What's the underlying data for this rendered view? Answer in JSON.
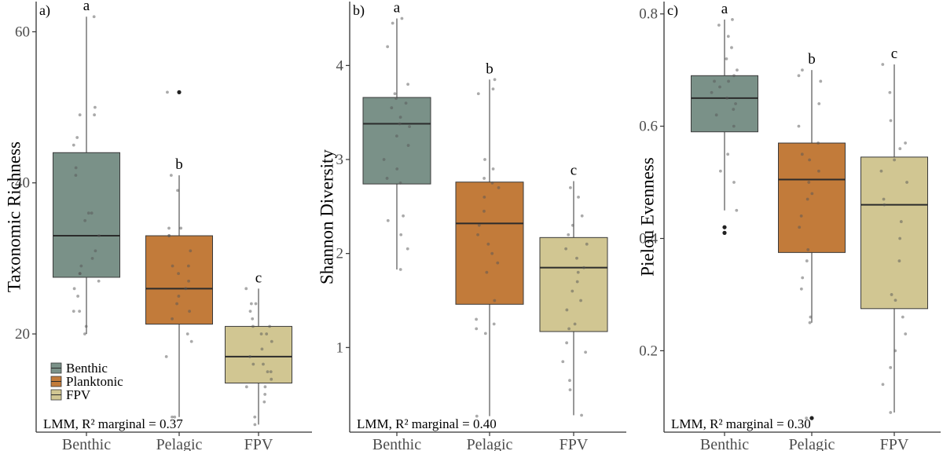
{
  "chart_data": [
    {
      "type": "boxplot",
      "panel_label": "a)",
      "ylabel": "Taxonomic Richness",
      "categories": [
        "Benthic",
        "Pelagic",
        "FPV"
      ],
      "yticks": [
        20,
        40,
        60
      ],
      "ylim": [
        7,
        64
      ],
      "series": [
        {
          "name": "Benthic",
          "color": "#7a9188",
          "min": 20,
          "q1": 27.5,
          "median": 33,
          "q3": 44,
          "max": 62,
          "letter": "a",
          "outliers": [],
          "points": [
            20,
            21,
            23,
            23,
            25,
            26,
            27,
            28,
            28,
            29,
            30,
            31,
            33,
            35,
            36,
            36,
            41,
            42,
            45,
            46,
            49,
            49,
            50,
            62
          ]
        },
        {
          "name": "Planktonic",
          "color": "#c27b3a",
          "min": 9,
          "q1": 21.3,
          "median": 26,
          "q3": 33,
          "max": 41,
          "letter": "b",
          "outliers": [
            52
          ],
          "points": [
            9,
            9,
            17,
            19,
            20,
            22,
            23,
            24,
            25,
            26,
            27,
            28,
            29,
            29,
            31,
            33,
            33,
            34,
            34,
            39,
            41,
            52
          ]
        },
        {
          "name": "FPV",
          "color": "#d1c692",
          "min": 8,
          "q1": 13.5,
          "median": 17,
          "q3": 21,
          "max": 26,
          "letter": "c",
          "outliers": [],
          "points": [
            8,
            9,
            11,
            12,
            13,
            13,
            14,
            15,
            15,
            16,
            16,
            17,
            18,
            19,
            20,
            20,
            21,
            21,
            22,
            23,
            24,
            24,
            26
          ]
        }
      ],
      "annotation": "LMM, R² marginal = 0.37",
      "legend": {
        "entries": [
          "Benthic",
          "Planktonic",
          "FPV"
        ],
        "position": "bottom-left"
      }
    },
    {
      "type": "boxplot",
      "panel_label": "b)",
      "ylabel": "Shannon Diversity",
      "categories": [
        "Benthic",
        "Pelagic",
        "FPV"
      ],
      "yticks": [
        1,
        2,
        3,
        4
      ],
      "ylim": [
        0.1,
        4.68
      ],
      "series": [
        {
          "name": "Benthic",
          "color": "#7a9188",
          "min": 1.83,
          "q1": 2.74,
          "median": 3.38,
          "q3": 3.66,
          "max": 4.5,
          "letter": "a",
          "outliers": [],
          "points": [
            1.83,
            2.05,
            2.2,
            2.35,
            2.4,
            2.75,
            2.8,
            2.9,
            3.0,
            3.15,
            3.25,
            3.35,
            3.38,
            3.45,
            3.55,
            3.6,
            3.65,
            3.7,
            3.8,
            4.2,
            4.45,
            4.5
          ]
        },
        {
          "name": "Planktonic",
          "color": "#c27b3a",
          "min": 0.27,
          "q1": 1.46,
          "median": 2.32,
          "q3": 2.76,
          "max": 3.85,
          "letter": "b",
          "outliers": [],
          "points": [
            0.27,
            1.15,
            1.2,
            1.25,
            1.3,
            1.5,
            1.8,
            1.9,
            2.0,
            2.1,
            2.2,
            2.3,
            2.45,
            2.6,
            2.7,
            2.75,
            2.8,
            2.9,
            3.0,
            3.7,
            3.75,
            3.85
          ]
        },
        {
          "name": "FPV",
          "color": "#d1c692",
          "min": 0.28,
          "q1": 1.17,
          "median": 1.85,
          "q3": 2.17,
          "max": 2.77,
          "letter": "c",
          "outliers": [],
          "points": [
            0.28,
            0.55,
            0.65,
            0.85,
            0.95,
            1.05,
            1.2,
            1.25,
            1.4,
            1.5,
            1.6,
            1.7,
            1.8,
            1.85,
            1.95,
            2.05,
            2.1,
            2.2,
            2.3,
            2.4,
            2.6,
            2.7
          ]
        }
      ],
      "annotation": "LMM, R² marginal = 0.40"
    },
    {
      "type": "boxplot",
      "panel_label": "c)",
      "ylabel": "Pielou Evenness",
      "categories": [
        "Benthic",
        "Pelagic",
        "FPV"
      ],
      "yticks": [
        0.2,
        0.4,
        0.6,
        0.8
      ],
      "ylim": [
        0.055,
        0.822
      ],
      "series": [
        {
          "name": "Benthic",
          "color": "#7a9188",
          "min": 0.45,
          "q1": 0.59,
          "median": 0.65,
          "q3": 0.69,
          "max": 0.79,
          "letter": "a",
          "outliers": [
            0.42,
            0.41
          ],
          "points": [
            0.45,
            0.5,
            0.52,
            0.55,
            0.6,
            0.62,
            0.63,
            0.64,
            0.65,
            0.66,
            0.67,
            0.68,
            0.68,
            0.69,
            0.7,
            0.72,
            0.74,
            0.76,
            0.78,
            0.79
          ]
        },
        {
          "name": "Planktonic",
          "color": "#c27b3a",
          "min": 0.25,
          "q1": 0.375,
          "median": 0.505,
          "q3": 0.57,
          "max": 0.7,
          "letter": "b",
          "outliers": [
            0.08
          ],
          "points": [
            0.08,
            0.25,
            0.26,
            0.31,
            0.33,
            0.36,
            0.38,
            0.42,
            0.44,
            0.47,
            0.48,
            0.5,
            0.52,
            0.54,
            0.55,
            0.57,
            0.6,
            0.64,
            0.68,
            0.69,
            0.7
          ]
        },
        {
          "name": "FPV",
          "color": "#d1c692",
          "min": 0.09,
          "q1": 0.275,
          "median": 0.46,
          "q3": 0.545,
          "max": 0.71,
          "letter": "c",
          "outliers": [],
          "points": [
            0.09,
            0.14,
            0.17,
            0.2,
            0.23,
            0.26,
            0.29,
            0.3,
            0.36,
            0.4,
            0.43,
            0.46,
            0.47,
            0.5,
            0.52,
            0.54,
            0.56,
            0.57,
            0.61,
            0.66,
            0.71
          ]
        }
      ],
      "annotation": "LMM, R² marginal = 0.30"
    }
  ]
}
